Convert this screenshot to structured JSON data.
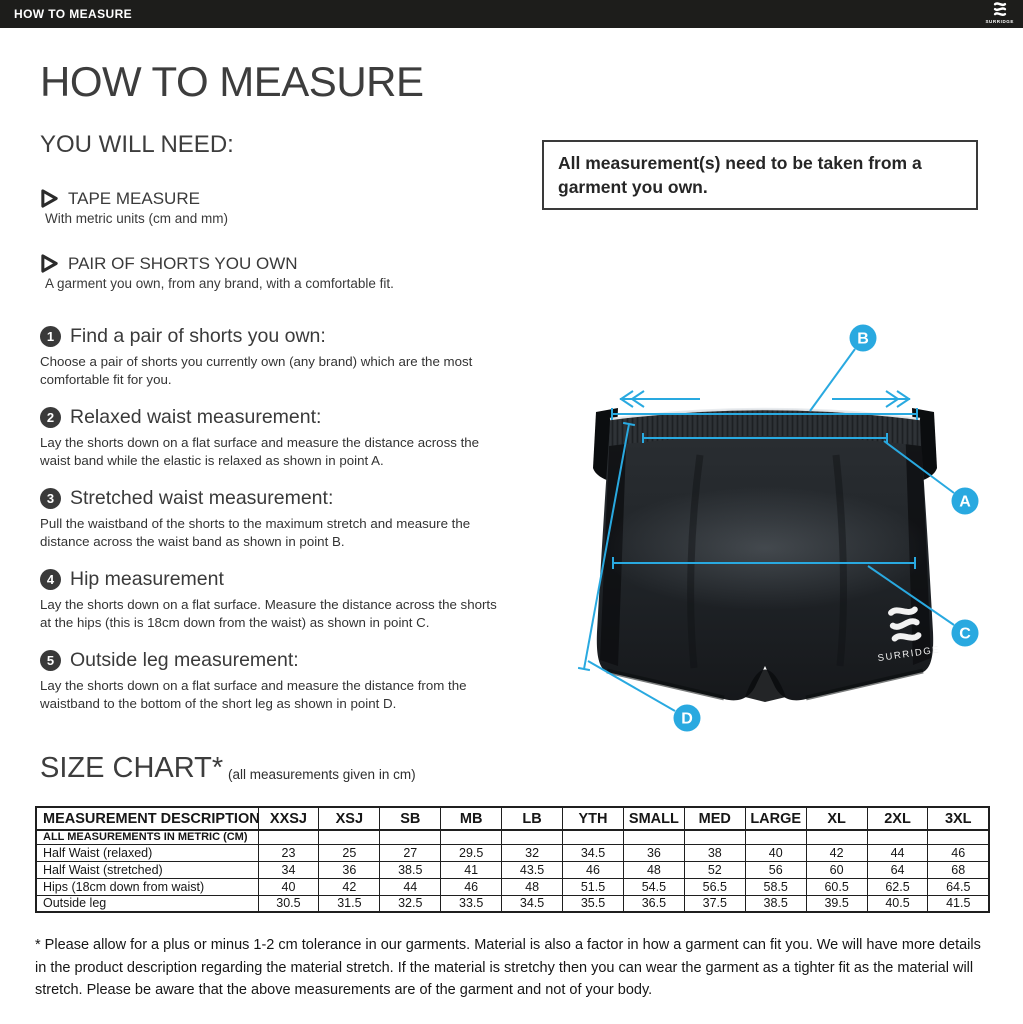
{
  "topbar": {
    "title": "HOW TO MEASURE",
    "brand": "SURRIDGE"
  },
  "page": {
    "title": "HOW TO MEASURE",
    "you_will_need": {
      "heading": "YOU WILL NEED:",
      "items": [
        {
          "label": "TAPE MEASURE",
          "description": "With metric units (cm and mm)"
        },
        {
          "label": "PAIR OF SHORTS YOU OWN",
          "description": "A garment you own, from any brand, with a comfortable fit."
        }
      ]
    },
    "note": "All measurement(s) need to be taken from a garment you own.",
    "steps": [
      {
        "number": "1",
        "title": "Find a pair of shorts you own:",
        "description": "Choose a pair of shorts you currently own (any brand) which are the most comfortable fit for you."
      },
      {
        "number": "2",
        "title": "Relaxed waist measurement:",
        "description": "Lay the shorts down on a flat surface and measure the distance across the waist band while the elastic is relaxed as shown in point A."
      },
      {
        "number": "3",
        "title": "Stretched waist measurement:",
        "description": "Pull the waistband of the shorts to the maximum stretch and measure the distance across the waist band as shown in point B."
      },
      {
        "number": "4",
        "title": "Hip measurement",
        "description": "Lay the shorts down on a flat surface. Measure the distance across the shorts at the hips (this is 18cm down from the waist)  as shown in point C."
      },
      {
        "number": "5",
        "title": "Outside leg measurement:",
        "description": "Lay the shorts down on a flat surface and measure the distance from the waistband to the bottom of the short leg as shown in point D."
      }
    ],
    "diagram": {
      "labels": [
        "A",
        "B",
        "C",
        "D"
      ],
      "brand": "SURRIDGE",
      "accent_color": "#29a9e0"
    },
    "footnote": "* Please allow for a plus or minus 1-2 cm tolerance in our garments. Material is also a factor in how a garment can fit you. We will have more details in the product description regarding the material stretch.  If the material is stretchy then you can wear the garment as a tighter fit as the material will stretch.  Please be aware that the above measurements are of the garment and not of your body."
  },
  "chart_data": {
    "type": "table",
    "title": "SIZE CHART*",
    "subtitle": "(all measurements given in cm)",
    "columns": [
      "MEASUREMENT DESCRIPTION",
      "XXSJ",
      "XSJ",
      "SB",
      "MB",
      "LB",
      "YTH",
      "SMALL",
      "MED",
      "LARGE",
      "XL",
      "2XL",
      "3XL"
    ],
    "unit_row_label": "ALL MEASUREMENTS IN METRIC (CM)",
    "rows": [
      {
        "label": "Half Waist (relaxed)",
        "values": [
          23,
          25,
          27,
          29.5,
          32,
          34.5,
          36,
          38,
          40,
          42,
          44,
          46
        ]
      },
      {
        "label": "Half Waist (stretched)",
        "values": [
          34,
          36,
          38.5,
          41,
          43.5,
          46,
          48,
          52,
          56,
          60,
          64,
          68
        ]
      },
      {
        "label": "Hips (18cm down from waist)",
        "values": [
          40,
          42,
          44,
          46,
          48,
          51.5,
          54.5,
          56.5,
          58.5,
          60.5,
          62.5,
          64.5
        ]
      },
      {
        "label": "Outside leg",
        "values": [
          30.5,
          31.5,
          32.5,
          33.5,
          34.5,
          35.5,
          36.5,
          37.5,
          38.5,
          39.5,
          40.5,
          41.5
        ]
      }
    ]
  }
}
